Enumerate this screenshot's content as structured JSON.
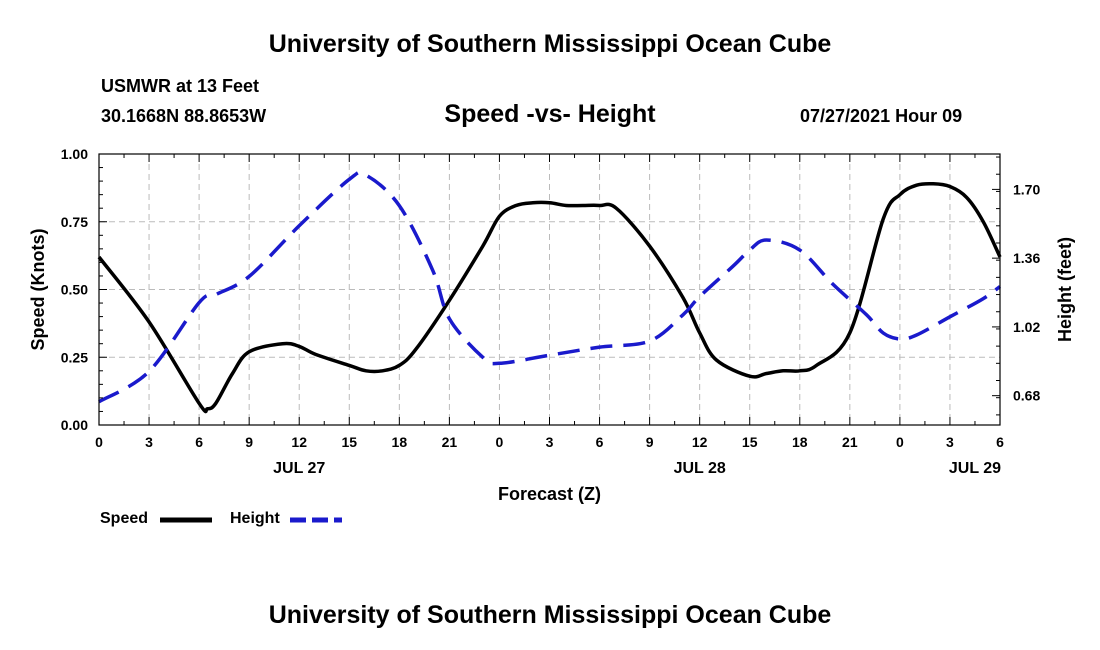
{
  "header": {
    "title": "University of Southern Mississippi Ocean Cube",
    "station": "USMWR at 13 Feet",
    "coords": "30.1668N  88.8653W",
    "timestamp": "07/27/2021 Hour 09"
  },
  "footer": {
    "title": "University of Southern Mississippi Ocean Cube"
  },
  "colors": {
    "speed": "#000000",
    "height": "#1a1acc",
    "grid": "#bbbbbb"
  },
  "chart_data": {
    "type": "line",
    "title": "Speed -vs- Height",
    "xlabel": "Forecast (Z)",
    "ylabel_left": "Speed (Knots)",
    "ylabel_right": "Height (feet)",
    "x_range_hours": [
      0,
      54
    ],
    "x_ticks": [
      {
        "h": 0,
        "label": "0"
      },
      {
        "h": 3,
        "label": "3"
      },
      {
        "h": 6,
        "label": "6"
      },
      {
        "h": 9,
        "label": "9"
      },
      {
        "h": 12,
        "label": "12"
      },
      {
        "h": 15,
        "label": "15"
      },
      {
        "h": 18,
        "label": "18"
      },
      {
        "h": 21,
        "label": "21"
      },
      {
        "h": 24,
        "label": "0"
      },
      {
        "h": 27,
        "label": "3"
      },
      {
        "h": 30,
        "label": "6"
      },
      {
        "h": 33,
        "label": "9"
      },
      {
        "h": 36,
        "label": "12"
      },
      {
        "h": 39,
        "label": "15"
      },
      {
        "h": 42,
        "label": "18"
      },
      {
        "h": 45,
        "label": "21"
      },
      {
        "h": 48,
        "label": "0"
      },
      {
        "h": 51,
        "label": "3"
      },
      {
        "h": 54,
        "label": "6"
      }
    ],
    "date_labels": [
      {
        "h": 12,
        "label": "JUL 27"
      },
      {
        "h": 36,
        "label": "JUL 28"
      },
      {
        "h": 52.5,
        "label": "JUL 29"
      }
    ],
    "ylim_left": [
      0,
      1.0
    ],
    "yticks_left": [
      "0.00",
      "0.25",
      "0.50",
      "0.75",
      "1.00"
    ],
    "ylim_right": [
      0.535,
      1.875
    ],
    "yticks_right": [
      "0.68",
      "1.02",
      "1.36",
      "1.70"
    ],
    "series": [
      {
        "name": "Speed",
        "axis": "left",
        "style": "solid",
        "x": [
          0,
          3,
          6,
          6.5,
          7,
          8,
          9,
          11,
          12,
          13,
          15,
          16,
          17,
          18,
          19,
          21,
          23,
          24,
          25,
          26,
          27,
          28,
          29,
          30,
          31,
          33,
          35,
          36,
          37,
          39,
          40,
          41,
          42,
          43,
          45,
          47,
          48,
          49,
          50,
          51,
          52,
          53,
          54
        ],
        "y": [
          0.62,
          0.38,
          0.08,
          0.06,
          0.08,
          0.19,
          0.27,
          0.3,
          0.29,
          0.26,
          0.22,
          0.2,
          0.2,
          0.22,
          0.28,
          0.46,
          0.66,
          0.77,
          0.81,
          0.82,
          0.82,
          0.81,
          0.81,
          0.81,
          0.8,
          0.66,
          0.47,
          0.34,
          0.24,
          0.18,
          0.19,
          0.2,
          0.2,
          0.22,
          0.34,
          0.76,
          0.85,
          0.885,
          0.89,
          0.88,
          0.84,
          0.75,
          0.62
        ]
      },
      {
        "name": "Height",
        "axis": "right",
        "style": "dashed",
        "x": [
          0,
          3,
          6,
          7,
          9,
          12,
          15,
          16,
          18,
          20,
          21,
          23,
          24,
          27,
          30,
          33,
          35,
          36,
          38,
          39,
          40,
          42,
          44,
          46,
          47,
          48,
          49,
          51,
          53,
          54
        ],
        "y": [
          0.65,
          0.8,
          1.14,
          1.18,
          1.27,
          1.52,
          1.75,
          1.77,
          1.62,
          1.3,
          1.06,
          0.87,
          0.84,
          0.88,
          0.92,
          0.95,
          1.08,
          1.17,
          1.32,
          1.4,
          1.45,
          1.4,
          1.23,
          1.08,
          0.99,
          0.96,
          0.98,
          1.07,
          1.16,
          1.22
        ]
      }
    ],
    "legend": [
      {
        "name": "Speed",
        "style": "solid"
      },
      {
        "name": "Height",
        "style": "dashed"
      }
    ]
  }
}
